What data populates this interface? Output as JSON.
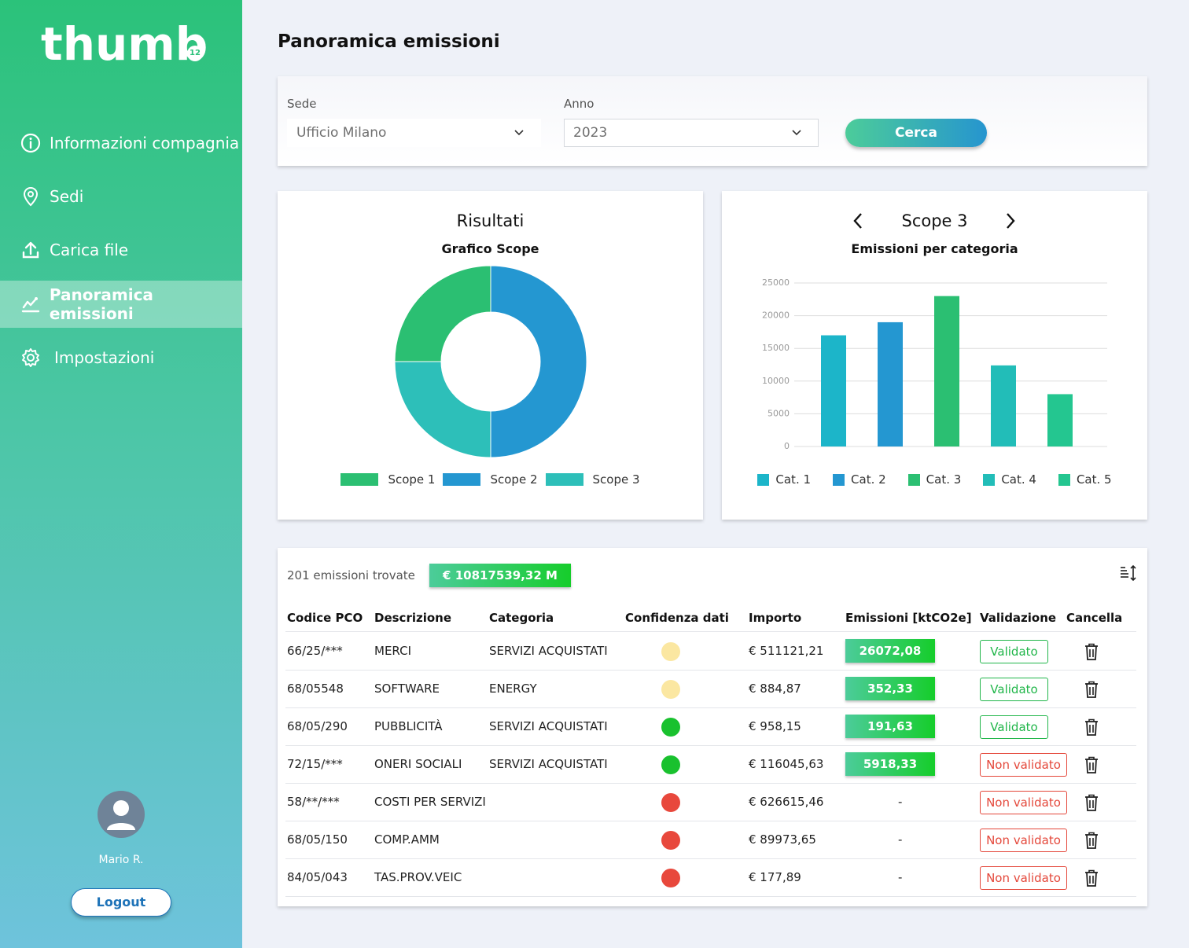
{
  "brand": {
    "logo_text": "thumb",
    "logo_badge": "12"
  },
  "sidebar": {
    "items": [
      {
        "label": "Informazioni compagnia",
        "icon": "info-icon",
        "active": false
      },
      {
        "label": "Sedi",
        "icon": "location-pin-icon",
        "active": false
      },
      {
        "label": "Carica file",
        "icon": "upload-icon",
        "active": false
      },
      {
        "label": "Panoramica emissioni",
        "icon": "chart-line-icon",
        "active": true
      },
      {
        "label": "Impostazioni",
        "icon": "gear-icon",
        "active": false
      }
    ],
    "user_name": "Mario R.",
    "logout_label": "Logout"
  },
  "page_title": "Panoramica emissioni",
  "filters": {
    "sede_label": "Sede",
    "sede_value": "Ufficio Milano",
    "anno_label": "Anno",
    "anno_value": "2023",
    "search_label": "Cerca"
  },
  "colors": {
    "scope1": "#2bbf72",
    "scope2": "#2497d1",
    "scope3": "#2dbfb9",
    "cat1": "#1cb5c9",
    "cat2": "#2497d1",
    "cat3": "#2bbf72",
    "cat4": "#22bdb8",
    "cat5": "#24c690",
    "valid": "#21b64a",
    "invalid": "#e4473a"
  },
  "chart_data": [
    {
      "type": "pie",
      "title": "Risultati",
      "subtitle": "Grafico Scope",
      "categories": [
        "Scope 1",
        "Scope 2",
        "Scope 3"
      ],
      "values": [
        25,
        50,
        25
      ],
      "donut": true,
      "legend": "bottom"
    },
    {
      "type": "bar",
      "title": "Scope 3",
      "subtitle": "Emissioni per categoria",
      "categories": [
        "Cat. 1",
        "Cat. 2",
        "Cat. 3",
        "Cat. 4",
        "Cat. 5"
      ],
      "values": [
        17000,
        19000,
        23000,
        12400,
        8000
      ],
      "yticks": [
        0,
        5000,
        10000,
        15000,
        20000,
        25000
      ],
      "ylim": [
        0,
        25000
      ],
      "grid": true,
      "legend": "bottom"
    }
  ],
  "table": {
    "count_text": "201 emissioni trovate",
    "total_text": "€ 10817539,32 M",
    "headers": [
      "Codice PCO",
      "Descrizione",
      "Categoria",
      "Confidenza dati",
      "Importo",
      "Emissioni [ktCO2e]",
      "Validazione",
      "Cancella"
    ],
    "rows": [
      {
        "code": "66/25/***",
        "desc": "MERCI",
        "cat": "SERVIZI ACQUISTATI",
        "confidence": "#fbe7a1",
        "amount": "€ 511121,21",
        "emissions": "26072,08",
        "validation": "Validato",
        "valid": true
      },
      {
        "code": "68/05548",
        "desc": "SOFTWARE",
        "cat": "ENERGY",
        "confidence": "#fbe7a1",
        "amount": "€ 884,87",
        "emissions": "352,33",
        "validation": "Validato",
        "valid": true
      },
      {
        "code": "68/05/290",
        "desc": "PUBBLICITÀ",
        "cat": "SERVIZI ACQUISTATI",
        "confidence": "#19c12e",
        "amount": "€ 958,15",
        "emissions": "191,63",
        "validation": "Validato",
        "valid": true
      },
      {
        "code": "72/15/***",
        "desc": "ONERI SOCIALI",
        "cat": "SERVIZI ACQUISTATI",
        "confidence": "#19c12e",
        "amount": "€ 116045,63",
        "emissions": "5918,33",
        "validation": "Non validato",
        "valid": false
      },
      {
        "code": "58/**/***",
        "desc": "COSTI PER SERVIZI",
        "cat": "",
        "confidence": "#e8483c",
        "amount": "€ 626615,46",
        "emissions": "-",
        "validation": "Non validato",
        "valid": false
      },
      {
        "code": "68/05/150",
        "desc": "COMP.AMM",
        "cat": "",
        "confidence": "#e8483c",
        "amount": "€ 89973,65",
        "emissions": "-",
        "validation": "Non validato",
        "valid": false
      },
      {
        "code": "84/05/043",
        "desc": "TAS.PROV.VEIC",
        "cat": "",
        "confidence": "#e8483c",
        "amount": "€ 177,89",
        "emissions": "-",
        "validation": "Non validato",
        "valid": false
      }
    ]
  }
}
